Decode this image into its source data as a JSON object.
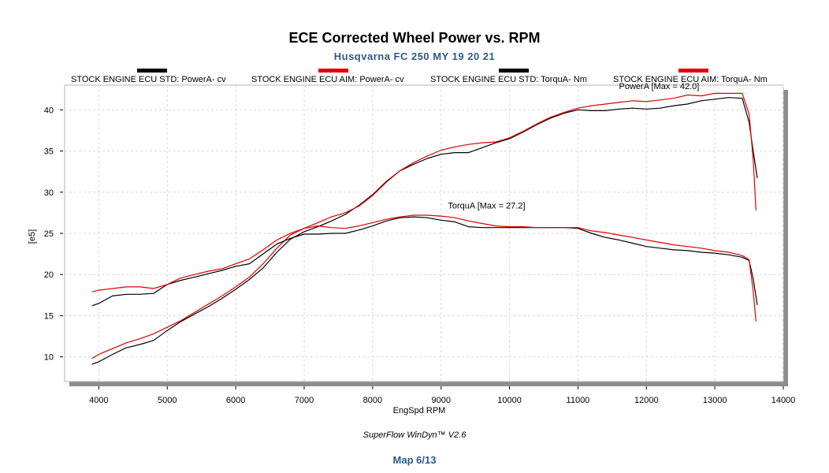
{
  "chart_data": {
    "type": "line",
    "title": "ECE Corrected Wheel Power vs. RPM",
    "subtitle": "Husqvarna FC 250 MY 19 20 21",
    "xlabel": "EngSpd  RPM",
    "ylabel": "[e5]",
    "xlim": [
      3500,
      14000
    ],
    "ylim": [
      7,
      43
    ],
    "xticks": [
      4000,
      5000,
      6000,
      7000,
      8000,
      9000,
      10000,
      11000,
      12000,
      13000,
      14000
    ],
    "yticks": [
      10,
      15,
      20,
      25,
      30,
      35,
      40
    ],
    "grid": true,
    "legend": "top",
    "annotations": [
      {
        "text": "PowerA [Max = 42.0]",
        "x": 11600,
        "y": 42.5
      },
      {
        "text": "TorquA [Max = 27.2]",
        "x": 9100,
        "y": 28.0
      }
    ],
    "series": [
      {
        "name": "STOCK ENGINE ECU STD: PowerA- cv",
        "color": "#000000",
        "x": [
          3900,
          4000,
          4200,
          4400,
          4600,
          4800,
          5000,
          5200,
          5400,
          5600,
          5800,
          6000,
          6200,
          6400,
          6600,
          6800,
          7000,
          7200,
          7400,
          7600,
          7800,
          8000,
          8200,
          8400,
          8600,
          8800,
          9000,
          9200,
          9400,
          9600,
          9800,
          10000,
          10200,
          10400,
          10600,
          10800,
          11000,
          11200,
          11400,
          11600,
          11800,
          12000,
          12200,
          12400,
          12600,
          12800,
          13000,
          13200,
          13400,
          13500,
          13560,
          13620
        ],
        "y": [
          9.1,
          9.4,
          10.3,
          11.1,
          11.5,
          12.0,
          13.2,
          14.3,
          15.2,
          16.1,
          17.1,
          18.2,
          19.4,
          20.8,
          22.7,
          24.3,
          25.2,
          25.8,
          26.5,
          27.3,
          28.4,
          29.7,
          31.3,
          32.6,
          33.4,
          34.1,
          34.6,
          34.8,
          34.8,
          35.4,
          36.0,
          36.5,
          37.3,
          38.2,
          39.0,
          39.6,
          40.0,
          39.9,
          39.9,
          40.1,
          40.2,
          40.1,
          40.2,
          40.5,
          40.7,
          41.1,
          41.3,
          41.5,
          41.4,
          38.5,
          35.0,
          31.7
        ]
      },
      {
        "name": "STOCK ENGINE ECU AIM: PowerA- cv",
        "color": "#e00000",
        "x": [
          3900,
          4000,
          4200,
          4400,
          4600,
          4800,
          5000,
          5200,
          5400,
          5600,
          5800,
          6000,
          6200,
          6400,
          6600,
          6800,
          7000,
          7200,
          7400,
          7600,
          7800,
          8000,
          8200,
          8400,
          8600,
          8800,
          9000,
          9200,
          9400,
          9600,
          9800,
          10000,
          10200,
          10400,
          10600,
          10800,
          11000,
          11200,
          11400,
          11600,
          11800,
          12000,
          12200,
          12400,
          12600,
          12800,
          13000,
          13200,
          13400,
          13500,
          13560,
          13600
        ],
        "y": [
          9.8,
          10.3,
          11.0,
          11.7,
          12.2,
          12.8,
          13.6,
          14.4,
          15.4,
          16.4,
          17.4,
          18.5,
          19.7,
          21.3,
          23.2,
          24.8,
          25.6,
          26.3,
          27.0,
          27.5,
          28.3,
          29.6,
          31.2,
          32.6,
          33.6,
          34.4,
          35.1,
          35.5,
          35.8,
          36.0,
          36.1,
          36.6,
          37.4,
          38.3,
          39.1,
          39.7,
          40.2,
          40.5,
          40.7,
          40.9,
          41.1,
          41.0,
          41.2,
          41.4,
          41.8,
          41.7,
          42.0,
          42.0,
          42.0,
          39.5,
          34.0,
          27.8
        ]
      },
      {
        "name": "STOCK ENGINE ECU STD: TorquA- Nm",
        "color": "#000000",
        "x": [
          3900,
          4000,
          4200,
          4400,
          4600,
          4800,
          5000,
          5200,
          5400,
          5600,
          5800,
          6000,
          6200,
          6400,
          6600,
          6800,
          7000,
          7200,
          7400,
          7600,
          7800,
          8000,
          8200,
          8400,
          8600,
          8800,
          9000,
          9200,
          9400,
          9600,
          9800,
          10000,
          10200,
          10400,
          10600,
          10800,
          11000,
          11200,
          11400,
          11600,
          11800,
          12000,
          12200,
          12400,
          12600,
          12800,
          13000,
          13200,
          13400,
          13500,
          13560,
          13620
        ],
        "y": [
          16.2,
          16.5,
          17.4,
          17.6,
          17.6,
          17.7,
          18.8,
          19.3,
          19.7,
          20.1,
          20.5,
          21.0,
          21.3,
          22.5,
          23.7,
          24.4,
          24.9,
          24.9,
          25.0,
          25.0,
          25.4,
          25.9,
          26.5,
          26.9,
          27.0,
          26.9,
          26.6,
          26.4,
          25.8,
          25.7,
          25.7,
          25.7,
          25.7,
          25.7,
          25.7,
          25.7,
          25.6,
          25.0,
          24.5,
          24.2,
          23.8,
          23.4,
          23.2,
          23.0,
          22.9,
          22.7,
          22.6,
          22.4,
          22.1,
          21.7,
          19.5,
          16.3
        ]
      },
      {
        "name": "STOCK ENGINE ECU AIM: TorquA- Nm",
        "color": "#e00000",
        "x": [
          3900,
          4000,
          4200,
          4400,
          4600,
          4800,
          5000,
          5200,
          5400,
          5600,
          5800,
          6000,
          6200,
          6400,
          6600,
          6800,
          7000,
          7200,
          7400,
          7600,
          7800,
          8000,
          8200,
          8400,
          8600,
          8800,
          9000,
          9200,
          9400,
          9600,
          9800,
          10000,
          10200,
          10400,
          10600,
          10800,
          11000,
          11200,
          11400,
          11600,
          11800,
          12000,
          12200,
          12400,
          12600,
          12800,
          13000,
          13200,
          13400,
          13500,
          13560,
          13600
        ],
        "y": [
          17.9,
          18.1,
          18.3,
          18.5,
          18.5,
          18.3,
          18.8,
          19.6,
          20.0,
          20.4,
          20.7,
          21.3,
          21.9,
          23.0,
          24.2,
          25.0,
          25.6,
          25.9,
          25.7,
          25.6,
          25.9,
          26.3,
          26.7,
          27.0,
          27.2,
          27.2,
          27.1,
          26.9,
          26.5,
          26.2,
          25.9,
          25.8,
          25.8,
          25.7,
          25.7,
          25.7,
          25.7,
          25.3,
          25.1,
          24.8,
          24.5,
          24.2,
          23.9,
          23.6,
          23.4,
          23.2,
          22.9,
          22.7,
          22.3,
          21.8,
          18.0,
          14.3
        ]
      }
    ]
  },
  "footer": "SuperFlow WinDyn™ V2.6",
  "map_label": "Map 6/13",
  "colors": {
    "subtitle": "#2b5b8a",
    "map_label": "#2b5b8a",
    "std": "#000000",
    "aim": "#e00000"
  }
}
